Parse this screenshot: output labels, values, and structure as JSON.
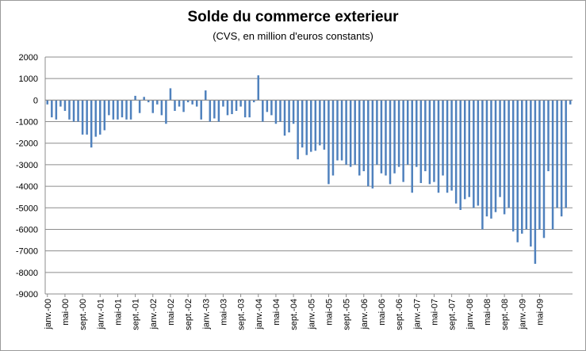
{
  "chart_data": {
    "type": "bar",
    "title": "Solde du commerce exterieur",
    "subtitle": "(CVS, en million d'euros constants)",
    "xlabel": "",
    "ylabel": "",
    "ylim": [
      -9000,
      2000
    ],
    "y_ticks": [
      "2000",
      "1000",
      "0",
      "-1000",
      "-2000",
      "-3000",
      "-4000",
      "-5000",
      "-6000",
      "-7000",
      "-8000",
      "-9000"
    ],
    "x_tick_labels": [
      "janv.-00",
      "mai-00",
      "sept.-00",
      "janv.-01",
      "mai-01",
      "sept.-01",
      "janv.-02",
      "mai-02",
      "sept.-02",
      "janv.-03",
      "mai-03",
      "sept.-03",
      "janv.-04",
      "mai-04",
      "sept.-04",
      "janv.-05",
      "mai-05",
      "sept.-05",
      "janv.-06",
      "mai-06",
      "sept.-06",
      "janv.-07",
      "mai-07",
      "sept.-07",
      "janv.-08",
      "mai-08",
      "sept.-08",
      "janv.-09",
      "mai-09"
    ],
    "grid": true,
    "bar_color": "#4f81bd",
    "series": [
      {
        "values": [
          -200,
          -800,
          -900,
          -300,
          -500,
          -900,
          -1000,
          -1000,
          -1600,
          -1600,
          -2200,
          -1700,
          -1600,
          -1400,
          -700,
          -900,
          -900,
          -800,
          -900,
          -900,
          200,
          -600,
          150,
          -100,
          -600,
          -200,
          -700,
          -1100,
          550,
          -500,
          -300,
          -550,
          -100,
          -200,
          -300,
          -900,
          450,
          -1000,
          -850,
          -1000,
          -300,
          -700,
          -650,
          -500,
          -300,
          -800,
          -800,
          -100,
          1150,
          -1000,
          -550,
          -700,
          -1100,
          -1000,
          -1650,
          -1500,
          -1100,
          -2750,
          -2200,
          -2550,
          -2400,
          -2350,
          -2100,
          -2300,
          -3900,
          -3500,
          -2800,
          -2800,
          -3000,
          -3100,
          -3000,
          -3500,
          -3300,
          -4000,
          -4100,
          -3000,
          -3400,
          -3500,
          -3900,
          -3400,
          -3100,
          -3800,
          -3000,
          -4300,
          -3100,
          -3850,
          -3300,
          -3900,
          -3800,
          -4300,
          -3500,
          -4300,
          -4200,
          -4800,
          -5100,
          -4600,
          -4500,
          -5000,
          -4900,
          -6000,
          -5400,
          -5500,
          -5200,
          -4500,
          -5300,
          -5000,
          -6100,
          -6600,
          -6200,
          -6000,
          -6800,
          -7600,
          -6000,
          -6400,
          -3300,
          -6000,
          -5000,
          -5400,
          -5000,
          -200
        ]
      }
    ]
  }
}
